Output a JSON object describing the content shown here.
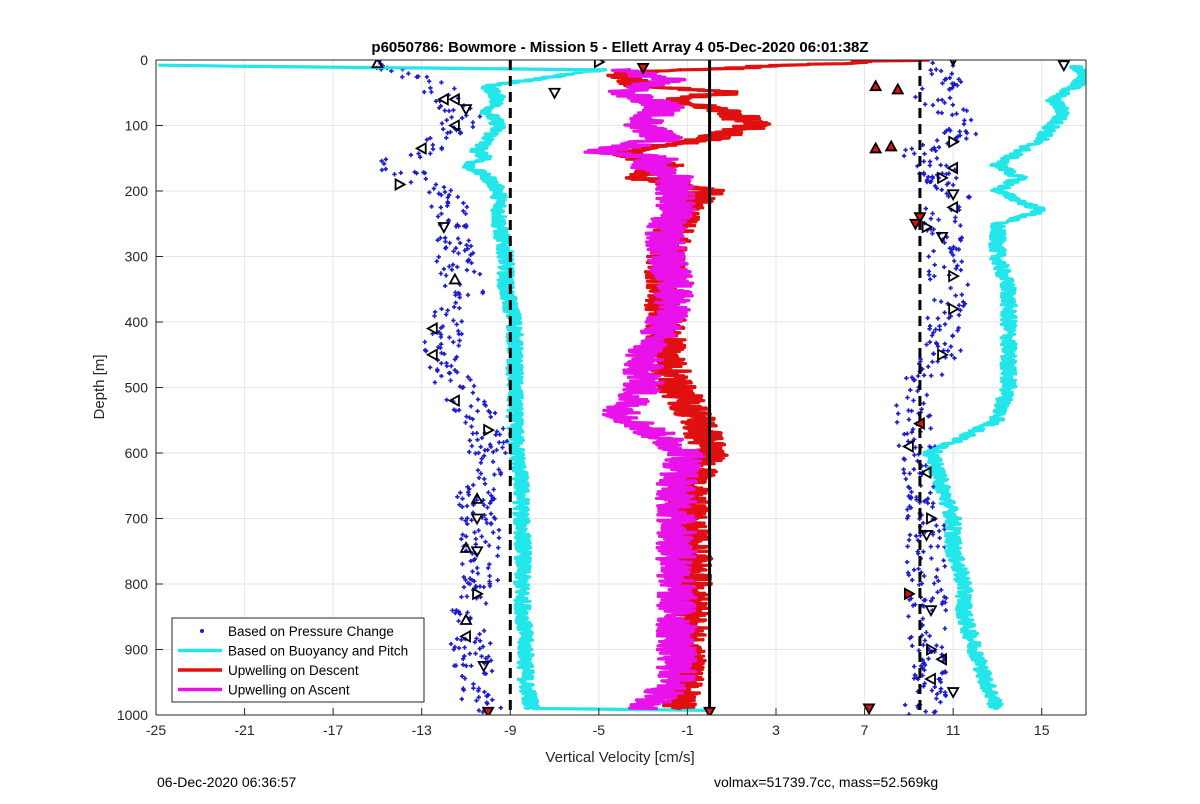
{
  "chart_data": {
    "type": "scatter",
    "title": "p6050786: Bowmore - Mission 5 - Ellett Array 4 05-Dec-2020 06:01:38Z",
    "xlabel": "Vertical Velocity [cm/s]",
    "ylabel": "Depth [m]",
    "xlim": [
      -25,
      17
    ],
    "ylim": [
      0,
      1000
    ],
    "y_reversed": true,
    "x_ticks": [
      -25,
      -21,
      -17,
      -13,
      -9,
      -5,
      -1,
      3,
      7,
      11,
      15
    ],
    "y_ticks": [
      0,
      100,
      200,
      300,
      400,
      500,
      600,
      700,
      800,
      900,
      1000
    ],
    "grid": true,
    "legend_position": "bottom-left",
    "reference_lines": [
      {
        "x": -9.0,
        "style": "dashed",
        "color": "#000000"
      },
      {
        "x": 0.0,
        "style": "solid",
        "color": "#000000"
      },
      {
        "x": 9.5,
        "style": "dashed",
        "color": "#000000"
      }
    ],
    "series": [
      {
        "name": "Based on Pressure Change",
        "kind": "points",
        "color": "#1a1acd",
        "groups": [
          {
            "depth": [
              0,
              40,
              60,
              80,
              100,
              120,
              140,
              160,
              180,
              200,
              240,
              300,
              350,
              400,
              450,
              500,
              560,
              600,
              650,
              700,
              750,
              800,
              850,
              900,
              950,
              1000
            ],
            "x": [
              -15,
              -12.5,
              -12,
              -11,
              -11.5,
              -12,
              -13,
              -14.5,
              -13,
              -12,
              -11.5,
              -11.5,
              -11,
              -12,
              -12,
              -11.5,
              -10,
              -10,
              -10.5,
              -10.5,
              -10.2,
              -10.5,
              -10.8,
              -10.8,
              -10.5,
              -10.2
            ]
          },
          {
            "depth": [
              0,
              40,
              60,
              80,
              100,
              120,
              140,
              160,
              180,
              200,
              240,
              300,
              350,
              400,
              450,
              500,
              550,
              600,
              650,
              700,
              750,
              800,
              850,
              900,
              950,
              1000
            ],
            "x": [
              11,
              10.5,
              10,
              11,
              12,
              11,
              9.5,
              10,
              10.5,
              11,
              10.5,
              10.5,
              11,
              10.5,
              10.5,
              9.5,
              9.2,
              9.5,
              9.8,
              9.8,
              9.8,
              9.8,
              9.8,
              10,
              10,
              9.6
            ]
          }
        ]
      },
      {
        "name": "Based on Buoyancy and Pitch",
        "kind": "line",
        "color": "#22e6ea",
        "groups": [
          {
            "depth": [
              8,
              10,
              15,
              40,
              60,
              80,
              100,
              120,
              140,
              150,
              160,
              180,
              200,
              250,
              300,
              350,
              400,
              450,
              500,
              550,
              600,
              650,
              700,
              750,
              800,
              850,
              900,
              950,
              990
            ],
            "x": [
              -25,
              -20,
              -5,
              -10,
              -9.5,
              -10,
              -9.5,
              -10,
              -10.5,
              -10,
              -11,
              -10,
              -9.5,
              -9.5,
              -9.2,
              -9.2,
              -8.8,
              -8.8,
              -8.8,
              -8.8,
              -8.7,
              -8.5,
              -8.5,
              -8.4,
              -8.5,
              -8.4,
              -8.3,
              -8.3,
              -8.0
            ]
          },
          {
            "depth": [
              990,
              993
            ],
            "x": [
              -8.0,
              0
            ]
          },
          {
            "depth": [
              10,
              20,
              40,
              60,
              80,
              100,
              120,
              140,
              160,
              180,
              200,
              230,
              250,
              300,
              350,
              400,
              450,
              500,
              550,
              600,
              650,
              700,
              750,
              800,
              850,
              900,
              950,
              990
            ],
            "x": [
              16.5,
              17,
              16.5,
              15.5,
              16,
              15.5,
              15,
              14,
              13,
              14,
              13,
              15,
              13,
              13,
              13.5,
              13.5,
              13.5,
              13.5,
              13,
              10,
              10.5,
              11,
              11,
              11.5,
              11.5,
              12,
              12.5,
              13
            ]
          }
        ]
      },
      {
        "name": "Upwelling on Descent",
        "kind": "line",
        "color": "#e01010",
        "groups": [
          {
            "depth": [
              0,
              20,
              40,
              50,
              60,
              80,
              100,
              120,
              140,
              160,
              180,
              200,
              220,
              250,
              300,
              350,
              400,
              450,
              500,
              550,
              600,
              650,
              700,
              750,
              800,
              850,
              900,
              950,
              990
            ],
            "x": [
              9,
              -4,
              -3,
              1,
              -2,
              1,
              2,
              0,
              -4,
              -2,
              -3,
              0,
              -1,
              -1.5,
              -2,
              -2,
              -2,
              -2,
              -1.5,
              -0.5,
              0,
              -1,
              -1,
              -0.8,
              -0.8,
              -1,
              -1,
              -1.2,
              -1.5
            ]
          }
        ]
      },
      {
        "name": "Upwelling on Ascent",
        "kind": "line",
        "color": "#ea12ea",
        "groups": [
          {
            "depth": [
              15,
              30,
              50,
              70,
              100,
              120,
              140,
              150,
              160,
              180,
              200,
              230,
              250,
              300,
              350,
              400,
              450,
              500,
              540,
              560,
              600,
              650,
              700,
              750,
              800,
              850,
              900,
              950,
              990
            ],
            "x": [
              -4,
              -2,
              -4,
              -2,
              -3,
              -2,
              -5,
              -2,
              -3,
              -1.5,
              -1.5,
              -1.5,
              -2,
              -2,
              -1.5,
              -2,
              -3,
              -3,
              -4,
              -3,
              -1,
              -1.5,
              -1.5,
              -1.5,
              -1.5,
              -1.5,
              -1.5,
              -1.5,
              -3
            ]
          }
        ]
      }
    ],
    "markers": [
      {
        "type": "up",
        "x": -15,
        "depth": 5,
        "fill": "none"
      },
      {
        "type": "right",
        "x": -5,
        "depth": 3,
        "fill": "none"
      },
      {
        "type": "down",
        "x": -3,
        "depth": 12,
        "fill": "#e01010"
      },
      {
        "type": "down",
        "x": -7,
        "depth": 50,
        "fill": "none"
      },
      {
        "type": "down",
        "x": 11,
        "depth": 0,
        "fill": "none"
      },
      {
        "type": "down",
        "x": 16,
        "depth": 8,
        "fill": "none"
      },
      {
        "type": "up",
        "x": 7.5,
        "depth": 40,
        "fill": "#e01010"
      },
      {
        "type": "up",
        "x": 8.5,
        "depth": 45,
        "fill": "#e01010"
      },
      {
        "type": "left",
        "x": -11.5,
        "depth": 60,
        "fill": "none"
      },
      {
        "type": "left",
        "x": -12,
        "depth": 60,
        "fill": "none"
      },
      {
        "type": "down",
        "x": -11,
        "depth": 75,
        "fill": "none"
      },
      {
        "type": "left",
        "x": -11.5,
        "depth": 100,
        "fill": "none"
      },
      {
        "type": "right",
        "x": 11,
        "depth": 125,
        "fill": "none"
      },
      {
        "type": "left",
        "x": -13,
        "depth": 135,
        "fill": "none"
      },
      {
        "type": "up",
        "x": 7.5,
        "depth": 135,
        "fill": "#e01010"
      },
      {
        "type": "up",
        "x": 8.2,
        "depth": 132,
        "fill": "#e01010"
      },
      {
        "type": "left",
        "x": 11,
        "depth": 165,
        "fill": "none"
      },
      {
        "type": "right",
        "x": 10.5,
        "depth": 180,
        "fill": "none"
      },
      {
        "type": "right",
        "x": -14,
        "depth": 190,
        "fill": "none"
      },
      {
        "type": "down",
        "x": 11,
        "depth": 205,
        "fill": "none"
      },
      {
        "type": "left",
        "x": 11,
        "depth": 225,
        "fill": "none"
      },
      {
        "type": "down",
        "x": 9.5,
        "depth": 240,
        "fill": "#e01010"
      },
      {
        "type": "down",
        "x": 9.3,
        "depth": 250,
        "fill": "#e01010"
      },
      {
        "type": "down",
        "x": -12,
        "depth": 255,
        "fill": "none"
      },
      {
        "type": "right",
        "x": 9.8,
        "depth": 255,
        "fill": "none"
      },
      {
        "type": "down",
        "x": 10.5,
        "depth": 270,
        "fill": "none"
      },
      {
        "type": "right",
        "x": 11,
        "depth": 330,
        "fill": "none"
      },
      {
        "type": "up",
        "x": -11.5,
        "depth": 335,
        "fill": "none"
      },
      {
        "type": "right",
        "x": 11,
        "depth": 380,
        "fill": "none"
      },
      {
        "type": "left",
        "x": -12.5,
        "depth": 410,
        "fill": "none"
      },
      {
        "type": "right",
        "x": 10.5,
        "depth": 450,
        "fill": "none"
      },
      {
        "type": "left",
        "x": -12.5,
        "depth": 450,
        "fill": "none"
      },
      {
        "type": "left",
        "x": -11.5,
        "depth": 520,
        "fill": "none"
      },
      {
        "type": "left",
        "x": 9.5,
        "depth": 555,
        "fill": "#e01010"
      },
      {
        "type": "right",
        "x": -10,
        "depth": 565,
        "fill": "none"
      },
      {
        "type": "left",
        "x": 9,
        "depth": 590,
        "fill": "none"
      },
      {
        "type": "left",
        "x": 9.8,
        "depth": 630,
        "fill": "none"
      },
      {
        "type": "up",
        "x": -10.5,
        "depth": 670,
        "fill": "none"
      },
      {
        "type": "right",
        "x": 10,
        "depth": 700,
        "fill": "none"
      },
      {
        "type": "down",
        "x": -10.5,
        "depth": 700,
        "fill": "none"
      },
      {
        "type": "down",
        "x": 9.8,
        "depth": 725,
        "fill": "none"
      },
      {
        "type": "down",
        "x": -10.5,
        "depth": 750,
        "fill": "none"
      },
      {
        "type": "up",
        "x": -11,
        "depth": 745,
        "fill": "none"
      },
      {
        "type": "right",
        "x": -10.5,
        "depth": 815,
        "fill": "none"
      },
      {
        "type": "right",
        "x": 9,
        "depth": 815,
        "fill": "#e01010"
      },
      {
        "type": "down",
        "x": 10,
        "depth": 840,
        "fill": "none"
      },
      {
        "type": "up",
        "x": -11,
        "depth": 855,
        "fill": "none"
      },
      {
        "type": "left",
        "x": -11,
        "depth": 880,
        "fill": "none"
      },
      {
        "type": "right",
        "x": 10,
        "depth": 900,
        "fill": "none"
      },
      {
        "type": "left",
        "x": 10.5,
        "depth": 915,
        "fill": "none"
      },
      {
        "type": "down",
        "x": -10.2,
        "depth": 925,
        "fill": "none"
      },
      {
        "type": "left",
        "x": 10,
        "depth": 945,
        "fill": "none"
      },
      {
        "type": "down",
        "x": 11,
        "depth": 965,
        "fill": "none"
      },
      {
        "type": "down",
        "x": 7.2,
        "depth": 990,
        "fill": "#e01010"
      },
      {
        "type": "down",
        "x": -10,
        "depth": 995,
        "fill": "#e01010"
      },
      {
        "type": "down",
        "x": 0,
        "depth": 995,
        "fill": "#e01010"
      }
    ]
  },
  "footer": {
    "left": "06-Dec-2020 06:36:57",
    "right": "volmax=51739.7cc, mass=52.569kg"
  }
}
